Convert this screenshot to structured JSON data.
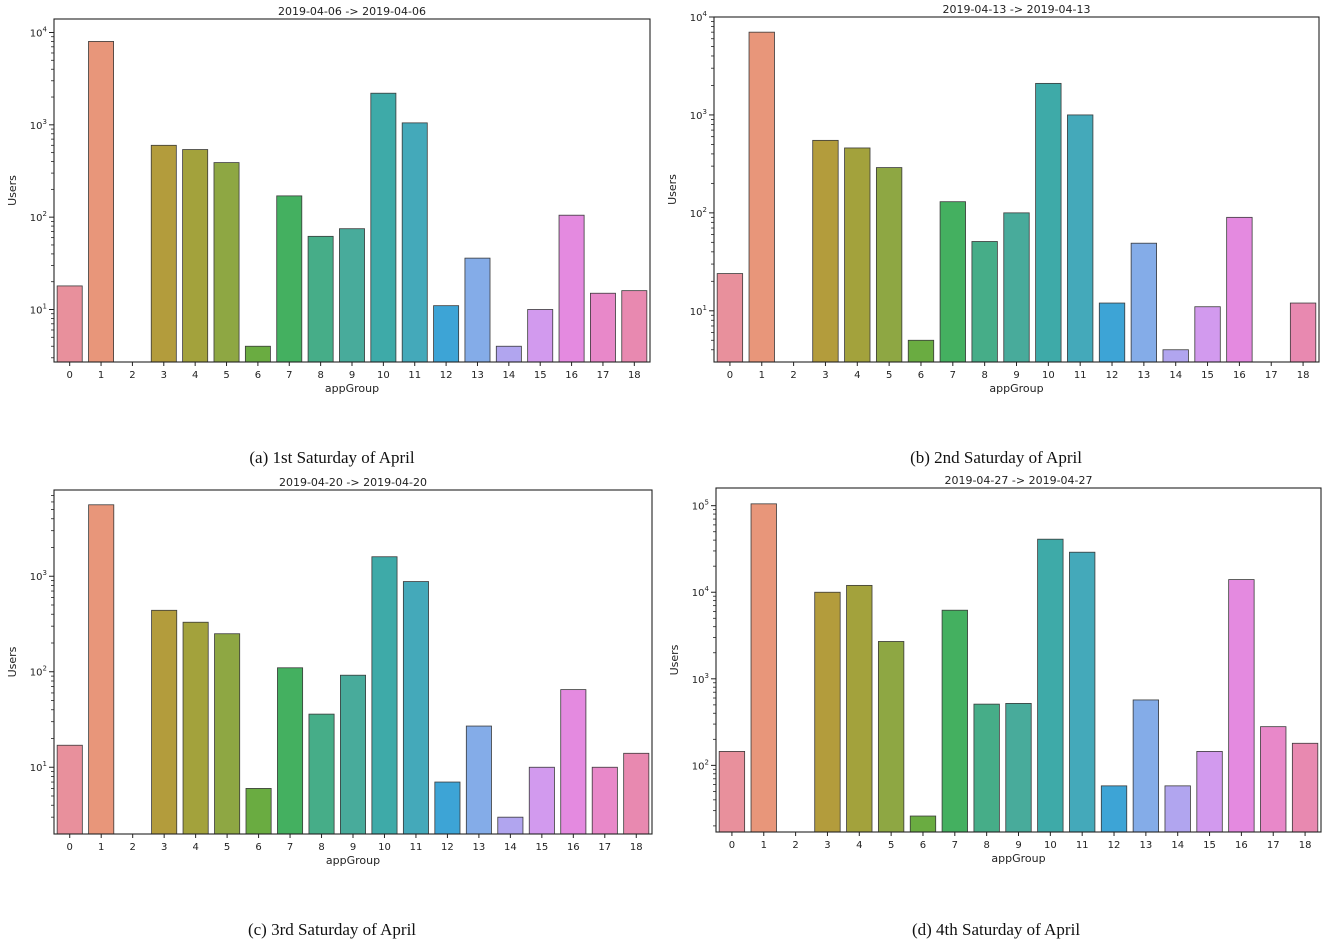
{
  "colors": [
    "#e8909c",
    "#e8967a",
    "#d7a04c",
    "#b39c3c",
    "#a3a23c",
    "#8ea743",
    "#6aac41",
    "#44b060",
    "#46ad88",
    "#48ab9b",
    "#3eaaa8",
    "#44a9ba",
    "#3da4d6",
    "#84ace8",
    "#b1a5ef",
    "#d29aee",
    "#e48ae0",
    "#e888c9",
    "#e889b0"
  ],
  "captions": [
    "(a) 1st Saturday of April",
    "(b) 2nd Saturday of April",
    "(c) 3rd Saturday of April",
    "(d) 4th Saturday of April"
  ],
  "chart_data": [
    {
      "type": "bar",
      "title": "2019-04-06 -> 2019-04-06",
      "xlabel": "appGroup",
      "ylabel": "Users",
      "yscale": "log",
      "ylim": [
        2.7,
        14000
      ],
      "yticks": [
        10,
        100,
        1000,
        10000
      ],
      "ytick_labels": [
        [
          "10",
          "1"
        ],
        [
          "10",
          "2"
        ],
        [
          "10",
          "3"
        ],
        [
          "10",
          "4"
        ]
      ],
      "categories": [
        "0",
        "1",
        "2",
        "3",
        "4",
        "5",
        "6",
        "7",
        "8",
        "9",
        "10",
        "11",
        "12",
        "13",
        "14",
        "15",
        "16",
        "17",
        "18"
      ],
      "values": [
        18,
        8000,
        null,
        600,
        540,
        390,
        4,
        170,
        62,
        75,
        2200,
        1050,
        11,
        36,
        4,
        10,
        105,
        15,
        16
      ]
    },
    {
      "type": "bar",
      "title": "2019-04-13 -> 2019-04-13",
      "xlabel": "appGroup",
      "ylabel": "Users",
      "yscale": "log",
      "ylim": [
        3,
        10000
      ],
      "yticks": [
        10,
        100,
        1000,
        10000
      ],
      "ytick_labels": [
        [
          "10",
          "1"
        ],
        [
          "10",
          "2"
        ],
        [
          "10",
          "3"
        ],
        [
          "10",
          "4"
        ]
      ],
      "categories": [
        "0",
        "1",
        "2",
        "3",
        "4",
        "5",
        "6",
        "7",
        "8",
        "9",
        "10",
        "11",
        "12",
        "13",
        "14",
        "15",
        "16",
        "17",
        "18"
      ],
      "values": [
        24,
        7000,
        null,
        550,
        460,
        290,
        5,
        130,
        51,
        100,
        2100,
        1000,
        12,
        49,
        4,
        11,
        90,
        null,
        12
      ]
    },
    {
      "type": "bar",
      "title": "2019-04-20 -> 2019-04-20",
      "xlabel": "appGroup",
      "ylabel": "Users",
      "yscale": "log",
      "ylim": [
        2,
        8000
      ],
      "yticks": [
        10,
        100,
        1000
      ],
      "ytick_labels": [
        [
          "10",
          "1"
        ],
        [
          "10",
          "2"
        ],
        [
          "10",
          "3"
        ]
      ],
      "categories": [
        "0",
        "1",
        "2",
        "3",
        "4",
        "5",
        "6",
        "7",
        "8",
        "9",
        "10",
        "11",
        "12",
        "13",
        "14",
        "15",
        "16",
        "17",
        "18"
      ],
      "values": [
        17,
        5600,
        null,
        440,
        330,
        250,
        6,
        110,
        36,
        92,
        1600,
        880,
        7,
        27,
        3,
        10,
        65,
        10,
        14
      ]
    },
    {
      "type": "bar",
      "title": "2019-04-27 -> 2019-04-27",
      "xlabel": "appGroup",
      "ylabel": "Users",
      "yscale": "log",
      "ylim": [
        17,
        160000
      ],
      "yticks": [
        100,
        1000,
        10000,
        100000
      ],
      "ytick_labels": [
        [
          "10",
          "2"
        ],
        [
          "10",
          "3"
        ],
        [
          "10",
          "4"
        ],
        [
          "10",
          "5"
        ]
      ],
      "categories": [
        "0",
        "1",
        "2",
        "3",
        "4",
        "5",
        "6",
        "7",
        "8",
        "9",
        "10",
        "11",
        "12",
        "13",
        "14",
        "15",
        "16",
        "17",
        "18"
      ],
      "values": [
        145,
        105000,
        null,
        10000,
        12000,
        2700,
        26,
        6200,
        510,
        520,
        41000,
        29000,
        58,
        570,
        58,
        145,
        14000,
        280,
        180
      ]
    }
  ]
}
